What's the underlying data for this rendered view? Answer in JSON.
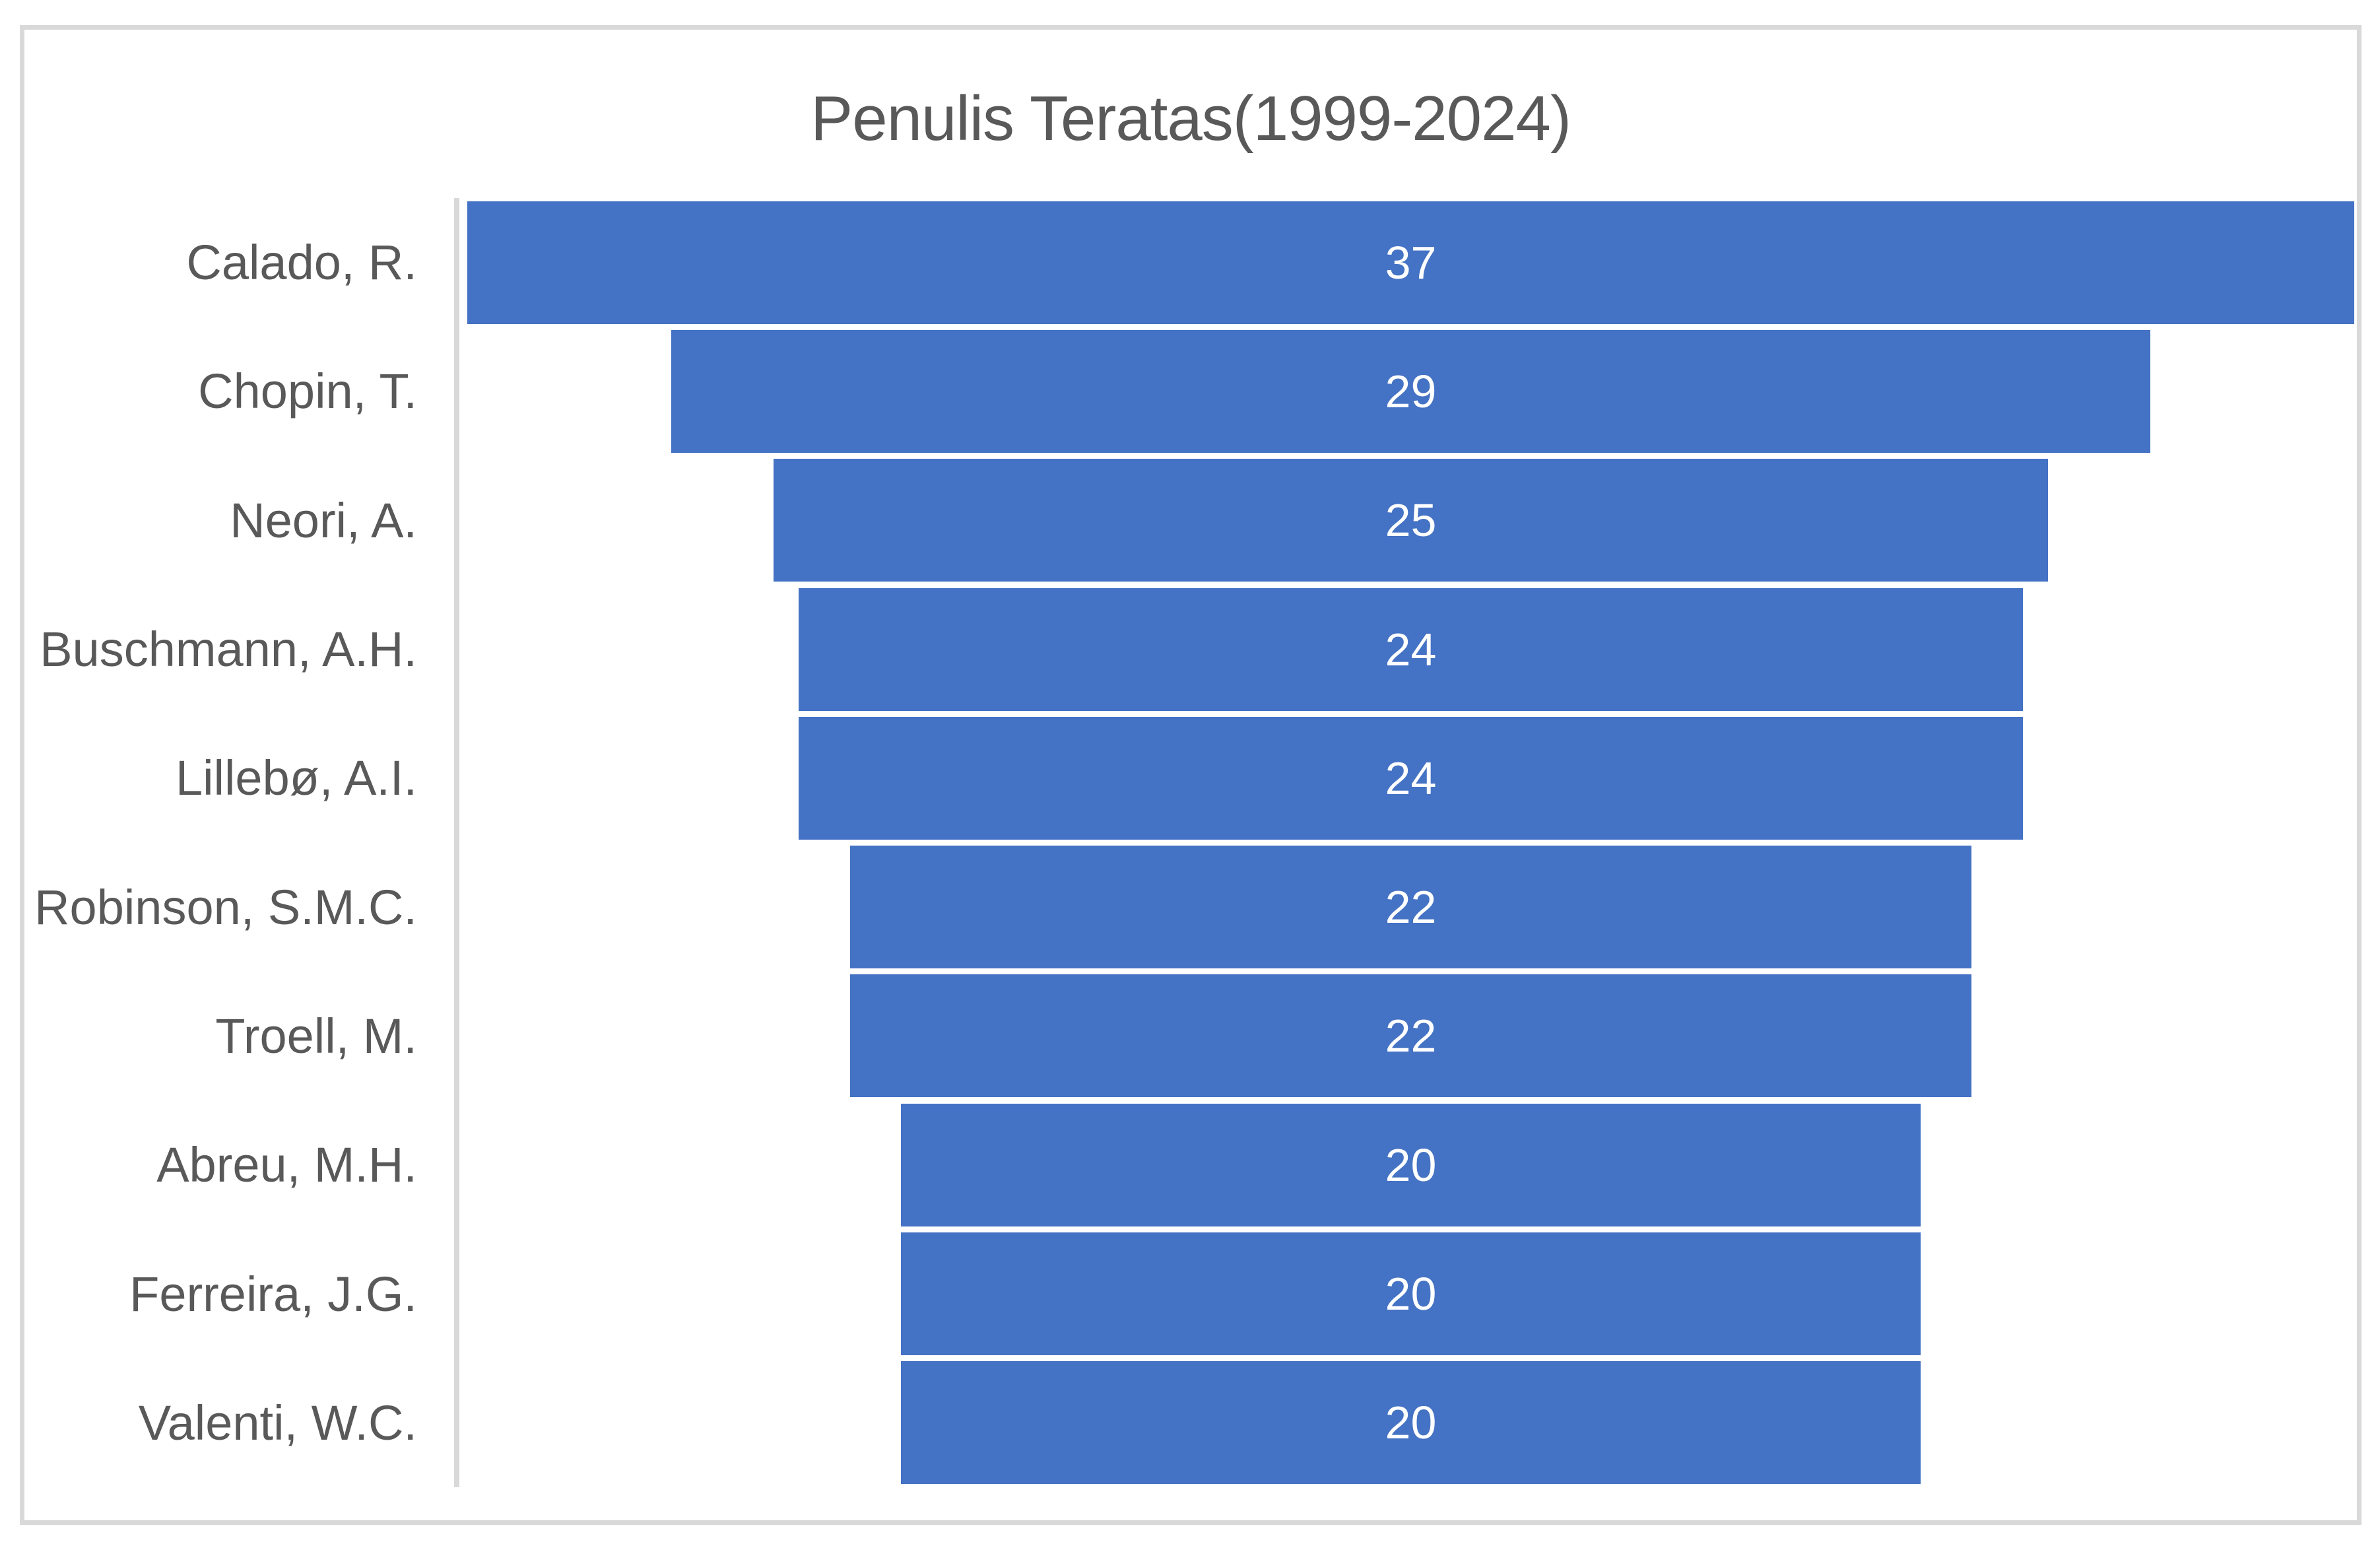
{
  "chart": {
    "title": "Penulis Teratas(1999-2024)"
  },
  "chart_data": {
    "type": "bar",
    "subtype": "funnel-horizontal-centered",
    "title": "Penulis Teratas(1999-2024)",
    "categories": [
      "Calado, R.",
      "Chopin, T.",
      "Neori, A.",
      "Buschmann, A.H.",
      "Lillebø, A.I.",
      "Robinson, S.M.C.",
      "Troell, M.",
      "Abreu, M.H.",
      "Ferreira, J.G.",
      "Valenti, W.C."
    ],
    "values": [
      37,
      29,
      25,
      24,
      24,
      22,
      22,
      20,
      20,
      20
    ],
    "xlabel": "",
    "ylabel": "",
    "xlim": [
      0,
      37
    ],
    "grid": false,
    "legend": false,
    "value_labels": "inside-center",
    "bars_centered": true
  },
  "colors": {
    "bar": "#4472C4",
    "title_text": "#595959",
    "category_text": "#595959",
    "value_text": "#FFFFFF",
    "axis_line": "#D9D9D9",
    "chart_border": "#D9D9D9",
    "background": "#FFFFFF"
  }
}
